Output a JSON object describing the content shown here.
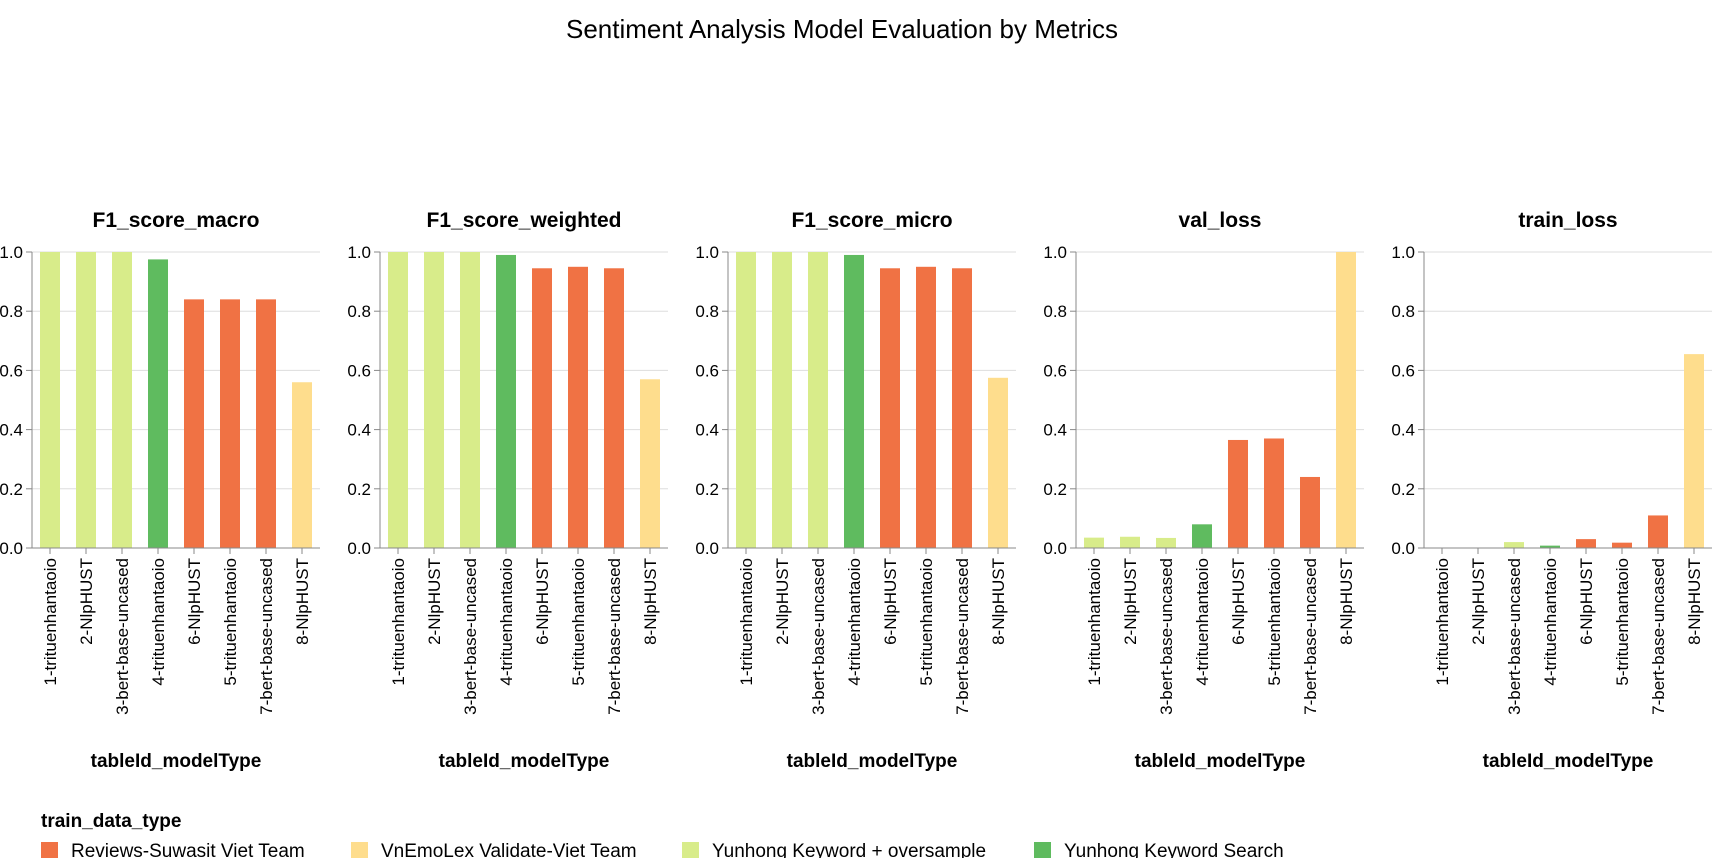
{
  "chart_data": {
    "type": "bar",
    "title": "Sentiment Analysis Model Evaluation by Metrics",
    "xlabel": "tableId_modelType",
    "categories": [
      "1-trituenhantaoio",
      "2-NlpHUST",
      "3-bert-base-uncased",
      "4-trituenhantaoio",
      "6-NlpHUST",
      "5-trituenhantaoio",
      "7-bert-base-uncased",
      "8-NlpHUST"
    ],
    "ylim": [
      0,
      1.0
    ],
    "yticks": [
      "0.0",
      "0.2",
      "0.4",
      "0.6",
      "0.8",
      "1.0"
    ],
    "grid": true,
    "category_groups": [
      "Yunhong Keyword + oversample",
      "Yunhong Keyword + oversample",
      "Yunhong Keyword + oversample",
      "Yunhong Keyword Search",
      "Reviews-Suwasit Viet Team",
      "Reviews-Suwasit Viet Team",
      "Reviews-Suwasit Viet Team",
      "VnEmoLex Validate-Viet Team"
    ],
    "panels": [
      {
        "metric": "F1_score_macro",
        "values": [
          1.0,
          1.0,
          1.0,
          0.975,
          0.84,
          0.84,
          0.84,
          0.56
        ]
      },
      {
        "metric": "F1_score_weighted",
        "values": [
          1.0,
          1.0,
          1.0,
          0.99,
          0.945,
          0.95,
          0.945,
          0.57
        ]
      },
      {
        "metric": "F1_score_micro",
        "values": [
          1.0,
          1.0,
          1.0,
          0.99,
          0.945,
          0.95,
          0.945,
          0.575
        ]
      },
      {
        "metric": "val_loss",
        "values": [
          0.035,
          0.038,
          0.034,
          0.08,
          0.365,
          0.37,
          0.24,
          1.0
        ]
      },
      {
        "metric": "train_loss",
        "values": [
          0.0,
          0.0,
          0.02,
          0.008,
          0.03,
          0.018,
          0.11,
          0.655
        ]
      }
    ],
    "legend": {
      "title": "train_data_type",
      "position": "bottom-left",
      "entries": [
        {
          "label": "Reviews-Suwasit Viet Team",
          "color": "#f07244"
        },
        {
          "label": "VnEmoLex Validate-Viet Team",
          "color": "#fedd8d"
        },
        {
          "label": "Yunhong Keyword + oversample",
          "color": "#d8ec8a"
        },
        {
          "label": "Yunhong Keyword Search",
          "color": "#5fbb5f"
        }
      ]
    }
  }
}
